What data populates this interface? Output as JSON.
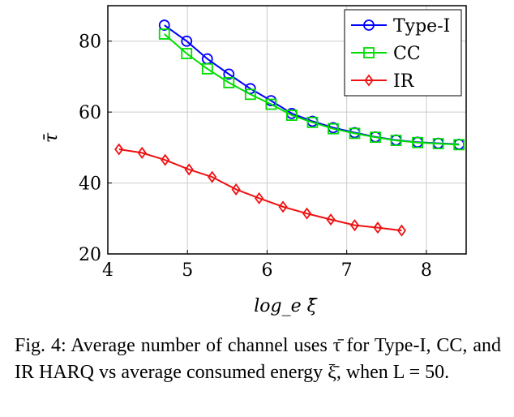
{
  "chart_data": {
    "type": "line",
    "xlabel": "log_e ξ̄",
    "ylabel": "τ̄",
    "xlim": [
      4,
      8.5
    ],
    "ylim": [
      20,
      90
    ],
    "xticks": [
      "4",
      "5",
      "6",
      "7",
      "8"
    ],
    "yticks": [
      "20",
      "40",
      "60",
      "80"
    ],
    "grid": true,
    "legend_position": "top-right",
    "series": [
      {
        "name": "Type-I",
        "color": "#0000ff",
        "marker": "circle",
        "x": [
          4.71,
          4.99,
          5.25,
          5.52,
          5.79,
          6.05,
          6.31,
          6.57,
          6.83,
          7.1,
          7.36,
          7.62,
          7.89,
          8.15,
          8.41
        ],
        "y": [
          84.5,
          80.0,
          75.0,
          70.7,
          66.6,
          63.2,
          59.6,
          57.4,
          55.6,
          54.2,
          53.0,
          52.1,
          51.5,
          51.2,
          50.9
        ]
      },
      {
        "name": "CC",
        "color": "#00dd00",
        "marker": "square",
        "x": [
          4.71,
          4.99,
          5.25,
          5.52,
          5.79,
          6.05,
          6.31,
          6.57,
          6.83,
          7.1,
          7.36,
          7.62,
          7.89,
          8.15,
          8.41
        ],
        "y": [
          82.0,
          76.5,
          72.2,
          68.3,
          65.0,
          62.2,
          59.1,
          57.1,
          55.3,
          54.0,
          52.9,
          52.0,
          51.4,
          51.1,
          50.8
        ]
      },
      {
        "name": "IR",
        "color": "#ee1111",
        "marker": "diamond",
        "x": [
          4.14,
          4.43,
          4.72,
          5.02,
          5.31,
          5.61,
          5.9,
          6.2,
          6.5,
          6.8,
          7.1,
          7.39,
          7.69
        ],
        "y": [
          49.5,
          48.5,
          46.5,
          43.8,
          41.7,
          38.2,
          35.7,
          33.3,
          31.4,
          29.7,
          28.1,
          27.4,
          26.6
        ]
      }
    ]
  },
  "caption": "Fig. 4: Average number of channel uses τ̄ for Type-I, CC, and IR HARQ vs average consumed energy ξ̄, when L = 50."
}
